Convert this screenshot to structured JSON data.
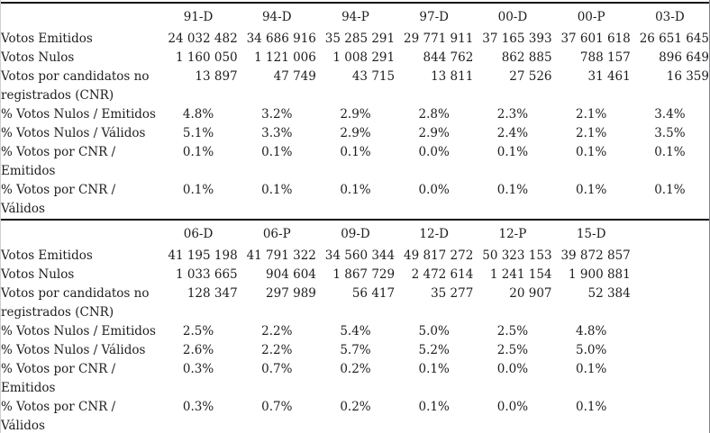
{
  "page": {
    "background": "#ffffff",
    "text_color": "#1d1d20",
    "rule_color": "#101012"
  },
  "table": {
    "total_data_columns": 7,
    "sections": [
      {
        "name": "elections-1991-2003",
        "columns": [
          "91-D",
          "94-D",
          "94-P",
          "97-D",
          "00-D",
          "00-P",
          "03-D"
        ],
        "rows": [
          {
            "type": "number",
            "label_lines": [
              "Votos Emitidos"
            ],
            "values": [
              "24 032 482",
              "34 686 916",
              "35 285 291",
              "29 771 911",
              "37 165 393",
              "37 601 618",
              "26 651 645"
            ]
          },
          {
            "type": "number",
            "label_lines": [
              "Votos Nulos"
            ],
            "values": [
              "1 160 050",
              "1 121 006",
              "1 008 291",
              "844 762",
              "862 885",
              "788 157",
              "896 649"
            ]
          },
          {
            "type": "number",
            "label_lines": [
              "Votos por candidatos no",
              "registrados (CNR)"
            ],
            "values": [
              "13 897",
              "47 749",
              "43 715",
              "13 811",
              "27 526",
              "31 461",
              "16 359"
            ]
          },
          {
            "type": "percent",
            "label_lines": [
              "% Votos Nulos / Emitidos"
            ],
            "values": [
              "4.8%",
              "3.2%",
              "2.9%",
              "2.8%",
              "2.3%",
              "2.1%",
              "3.4%"
            ]
          },
          {
            "type": "percent",
            "label_lines": [
              "% Votos Nulos / Válidos"
            ],
            "values": [
              "5.1%",
              "3.3%",
              "2.9%",
              "2.9%",
              "2.4%",
              "2.1%",
              "3.5%"
            ]
          },
          {
            "type": "percent",
            "label_lines": [
              "% Votos por CNR /",
              "Emitidos"
            ],
            "values": [
              "0.1%",
              "0.1%",
              "0.1%",
              "0.0%",
              "0.1%",
              "0.1%",
              "0.1%"
            ]
          },
          {
            "type": "percent",
            "label_lines": [
              "% Votos por CNR /",
              "Válidos"
            ],
            "values": [
              "0.1%",
              "0.1%",
              "0.1%",
              "0.0%",
              "0.1%",
              "0.1%",
              "0.1%"
            ]
          }
        ]
      },
      {
        "name": "elections-2006-2015",
        "columns": [
          "06-D",
          "06-P",
          "09-D",
          "12-D",
          "12-P",
          "15-D"
        ],
        "rows": [
          {
            "type": "number",
            "label_lines": [
              "Votos Emitidos"
            ],
            "values": [
              "41 195 198",
              "41 791 322",
              "34 560 344",
              "49 817 272",
              "50 323 153",
              "39 872 857"
            ]
          },
          {
            "type": "number",
            "label_lines": [
              "Votos Nulos"
            ],
            "values": [
              "1 033 665",
              "904 604",
              "1 867 729",
              "2 472 614",
              "1 241 154",
              "1 900 881"
            ]
          },
          {
            "type": "number",
            "label_lines": [
              "Votos por candidatos no",
              "registrados (CNR)"
            ],
            "values": [
              "128 347",
              "297 989",
              "56 417",
              "35 277",
              "20 907",
              "52 384"
            ]
          },
          {
            "type": "percent",
            "label_lines": [
              "% Votos Nulos / Emitidos"
            ],
            "values": [
              "2.5%",
              "2.2%",
              "5.4%",
              "5.0%",
              "2.5%",
              "4.8%"
            ]
          },
          {
            "type": "percent",
            "label_lines": [
              "% Votos Nulos / Válidos"
            ],
            "values": [
              "2.6%",
              "2.2%",
              "5.7%",
              "5.2%",
              "2.5%",
              "5.0%"
            ]
          },
          {
            "type": "percent",
            "label_lines": [
              "% Votos por CNR /",
              "Emitidos"
            ],
            "values": [
              "0.3%",
              "0.7%",
              "0.2%",
              "0.1%",
              "0.0%",
              "0.1%"
            ]
          },
          {
            "type": "percent",
            "label_lines": [
              "% Votos por CNR /",
              "Válidos"
            ],
            "values": [
              "0.3%",
              "0.7%",
              "0.2%",
              "0.1%",
              "0.0%",
              "0.1%"
            ]
          }
        ]
      }
    ]
  }
}
